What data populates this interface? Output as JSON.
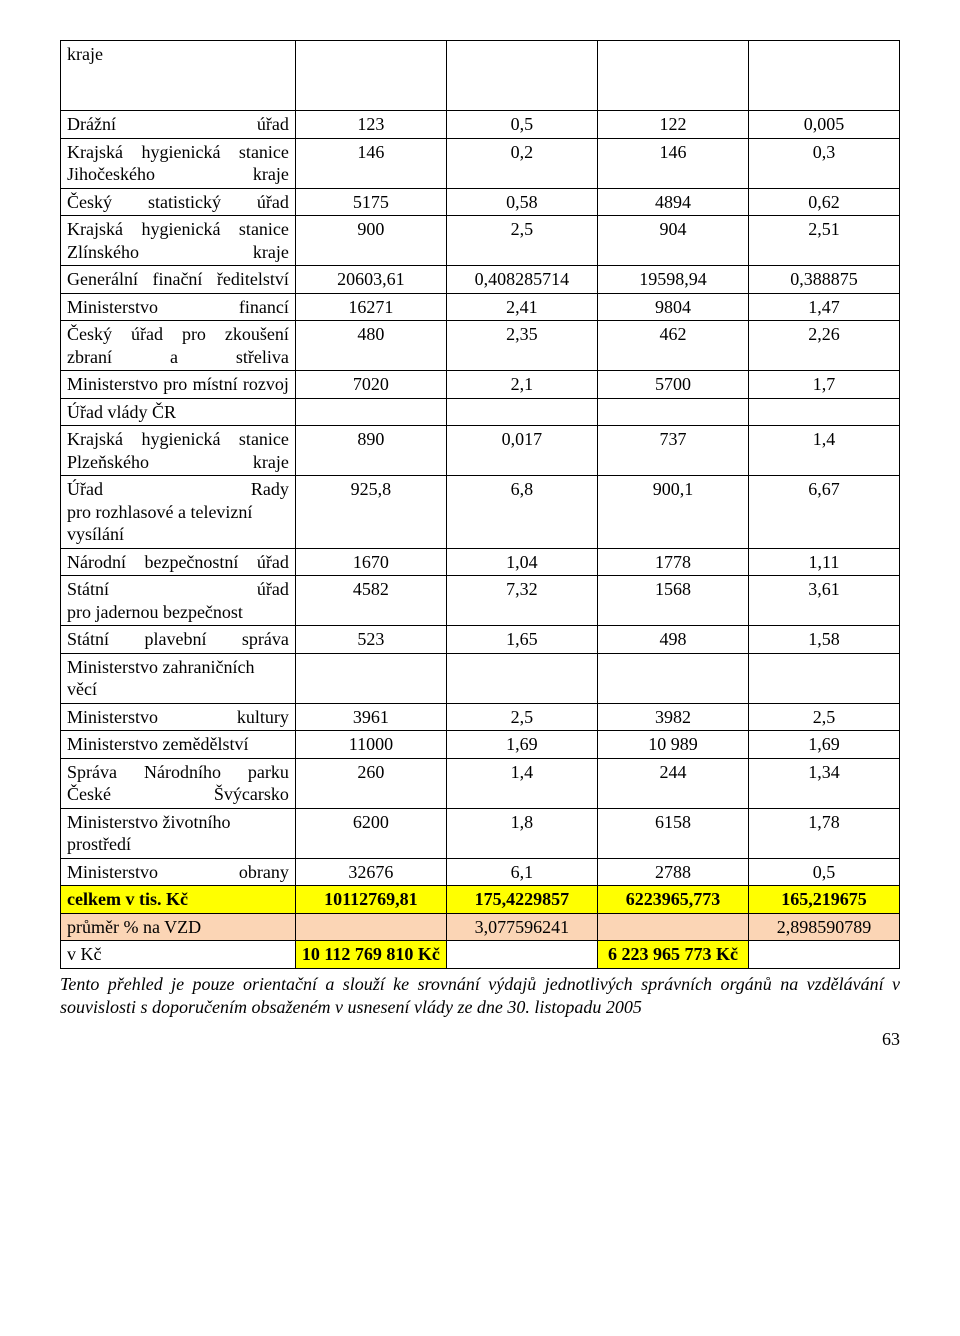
{
  "table": {
    "rows": [
      {
        "label": "kraje",
        "c2": "",
        "c3": "",
        "c4": "",
        "c5": "",
        "tall": true
      },
      {
        "label": "Drážní úřad",
        "c2": "123",
        "c3": "0,5",
        "c4": "122",
        "c5": "0,005"
      },
      {
        "label": "Krajská hygienická stanice Jihočeského kraje",
        "c2": "146",
        "c3": "0,2",
        "c4": "146",
        "c5": "0,3"
      },
      {
        "label": "Český statistický úřad",
        "c2": "5175",
        "c3": "0,58",
        "c4": "4894",
        "c5": "0,62"
      },
      {
        "label": "Krajská hygienická stanice Zlínského kraje",
        "c2": "900",
        "c3": "2,5",
        "c4": "904",
        "c5": "2,51"
      },
      {
        "label": "Generální finační ředitelství",
        "c2": "20603,61",
        "c3": "0,408285714",
        "c4": "19598,94",
        "c5": "0,388875"
      },
      {
        "label": "Ministerstvo financí",
        "c2": "16271",
        "c3": "2,41",
        "c4": "9804",
        "c5": "1,47"
      },
      {
        "label": "Český úřad pro zkoušení zbraní a střeliva",
        "c2": "480",
        "c3": "2,35",
        "c4": "462",
        "c5": "2,26"
      },
      {
        "label": "Ministerstvo pro místní rozvoj",
        "c2": "7020",
        "c3": "2,1",
        "c4": "5700",
        "c5": "1,7"
      },
      {
        "label": "Úřad vlády ČR",
        "c2": "",
        "c3": "",
        "c4": "",
        "c5": "",
        "leftAlign": true
      },
      {
        "label": "Krajská hygienická stanice Plzeňského kraje",
        "c2": "890",
        "c3": "0,017",
        "c4": "737",
        "c5": "1,4"
      },
      {
        "label": "Úřad Rady pro rozhlasové a televizní vysílání",
        "break2after1": true,
        "c2": "925,8",
        "c3": "6,8",
        "c4": "900,1",
        "c5": "6,67"
      },
      {
        "label": "Národní bezpečnostní úřad",
        "c2": "1670",
        "c3": "1,04",
        "c4": "1778",
        "c5": "1,11"
      },
      {
        "label": "Státní úřad pro jadernou bezpečnost",
        "break2after1": true,
        "c2": "4582",
        "c3": "7,32",
        "c4": "1568",
        "c5": "3,61"
      },
      {
        "label": "Státní plavební správa",
        "c2": "523",
        "c3": "1,65",
        "c4": "498",
        "c5": "1,58"
      },
      {
        "label": "Ministerstvo zahraničních věcí",
        "c2": "",
        "c3": "",
        "c4": "",
        "c5": "",
        "leftAlign": true
      },
      {
        "label": "Ministerstvo kultury",
        "c2": "3961",
        "c3": "2,5",
        "c4": "3982",
        "c5": "2,5"
      },
      {
        "label": "Ministerstvo zemědělství",
        "c2": "11000",
        "c3": "1,69",
        "c4": "10 989",
        "c5": "1,69",
        "leftAlign": true
      },
      {
        "label": "Správa Národního parku České Švýcarsko",
        "c2": "260",
        "c3": "1,4",
        "c4": "244",
        "c5": "1,34"
      },
      {
        "label": "Ministerstvo životního prostředí",
        "c2": "6200",
        "c3": "1,8",
        "c4": "6158",
        "c5": "1,78",
        "leftAlign": true
      },
      {
        "label": "Ministerstvo obrany",
        "c2": "32676",
        "c3": "6,1",
        "c4": "2788",
        "c5": "0,5"
      },
      {
        "label": "celkem v tis. Kč",
        "c2": "10112769,81",
        "c3": "175,4229857",
        "c4": "6223965,773",
        "c5": "165,219675",
        "class": "yellow",
        "leftAlign": true
      },
      {
        "label": "průměr % na VZD",
        "c2": "",
        "c3": "3,077596241",
        "c4": "",
        "c5": "2,898590789",
        "class": "peach",
        "leftAlign": true
      },
      {
        "label": "v Kč",
        "c2": "10 112 769 810 Kč",
        "c3": "",
        "c4": "6 223 965 773 Kč",
        "c5": "",
        "class2": "yellow",
        "class4": "yellow",
        "bold24": true,
        "leftAlign": true,
        "bottomAlignLabel": true
      }
    ]
  },
  "footer": "Tento přehled je pouze orientační a slouží ke srovnání výdajů jednotlivých správních orgánů na vzdělávání v souvislosti s doporučením obsaženém v usnesení vlády ze dne 30. listopadu 2005",
  "page_number": "63"
}
